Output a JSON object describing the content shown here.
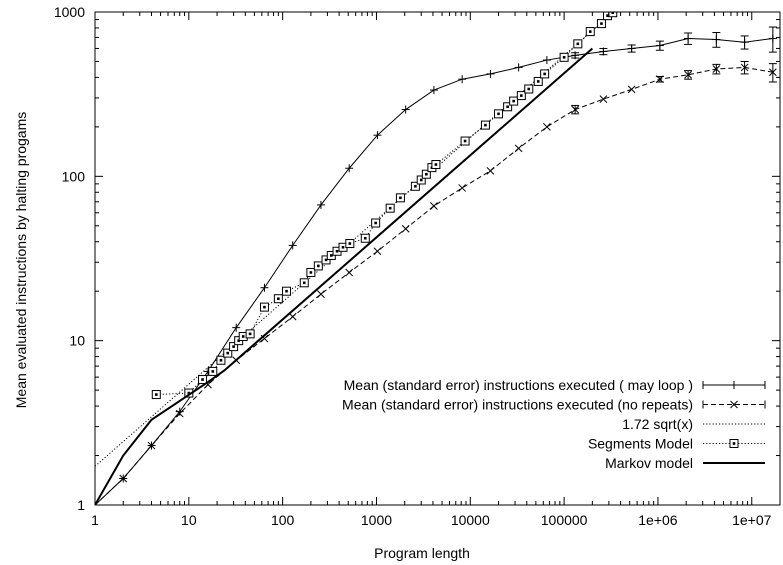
{
  "chart_data": {
    "type": "line",
    "xscale": "log",
    "yscale": "log",
    "xlim": [
      1,
      20000000
    ],
    "ylim": [
      1,
      1000
    ],
    "xlabel": "Program length",
    "ylabel": "Mean evaluated instructions by halting progams",
    "grid": false,
    "legend_position": "bottom-right",
    "x_ticks": [
      {
        "v": 1,
        "label": "1"
      },
      {
        "v": 10,
        "label": "10"
      },
      {
        "v": 100,
        "label": "100"
      },
      {
        "v": 1000,
        "label": "1000"
      },
      {
        "v": 10000,
        "label": "10000"
      },
      {
        "v": 100000,
        "label": "100000"
      },
      {
        "v": 1000000,
        "label": "1e+06"
      },
      {
        "v": 10000000,
        "label": "1e+07"
      }
    ],
    "y_ticks": [
      {
        "v": 1,
        "label": "1"
      },
      {
        "v": 10,
        "label": "10"
      },
      {
        "v": 100,
        "label": "100"
      },
      {
        "v": 1000,
        "label": "1000"
      }
    ],
    "series": [
      {
        "name": "Mean (standard error) instructions executed  ( may loop )",
        "style": "solid-thin",
        "marker": "plus",
        "points": [
          [
            1,
            1
          ],
          [
            2,
            1.45
          ],
          [
            4,
            2.3
          ],
          [
            8,
            3.7
          ],
          [
            16,
            6.5
          ],
          [
            32,
            12
          ],
          [
            64,
            21
          ],
          [
            128,
            38
          ],
          [
            256,
            67
          ],
          [
            512,
            112
          ],
          [
            1024,
            178
          ],
          [
            2048,
            255
          ],
          [
            4096,
            335
          ],
          [
            8192,
            390
          ],
          [
            16384,
            420
          ],
          [
            32768,
            460
          ],
          [
            65536,
            510
          ],
          [
            131072,
            545
          ],
          [
            262144,
            575
          ],
          [
            524288,
            600
          ],
          [
            1048576,
            625
          ],
          [
            2097152,
            690
          ],
          [
            4194304,
            680
          ],
          [
            8388608,
            655
          ],
          [
            16777216,
            690
          ]
        ],
        "errors": [
          0,
          0,
          0,
          0,
          0,
          0,
          0,
          0,
          0,
          0,
          0,
          0,
          0,
          0,
          0,
          0,
          0,
          20,
          25,
          30,
          40,
          55,
          70,
          60,
          120
        ]
      },
      {
        "name": "Mean (standard error) instructions executed (no repeats)",
        "style": "dashed",
        "marker": "x",
        "points": [
          [
            1,
            1
          ],
          [
            2,
            1.45
          ],
          [
            4,
            2.3
          ],
          [
            8,
            3.6
          ],
          [
            16,
            5.4
          ],
          [
            32,
            7.6
          ],
          [
            64,
            10.3
          ],
          [
            128,
            14
          ],
          [
            256,
            19.2
          ],
          [
            512,
            26
          ],
          [
            1024,
            35
          ],
          [
            2048,
            48
          ],
          [
            4096,
            66
          ],
          [
            8192,
            85
          ],
          [
            16384,
            108
          ],
          [
            32768,
            148
          ],
          [
            65536,
            200
          ],
          [
            131072,
            255
          ],
          [
            262144,
            295
          ],
          [
            524288,
            338
          ],
          [
            1048576,
            390
          ],
          [
            2097152,
            415
          ],
          [
            4194304,
            450
          ],
          [
            8388608,
            460
          ],
          [
            16777216,
            430
          ]
        ],
        "errors": [
          0,
          0,
          0,
          0,
          0,
          0,
          0,
          0,
          0,
          0,
          0,
          0,
          0,
          0,
          0,
          0,
          0,
          15,
          0,
          0,
          15,
          25,
          30,
          40,
          55
        ]
      },
      {
        "name": "1.72 sqrt(x)",
        "style": "dotted",
        "marker": "none",
        "coef": 1.72
      },
      {
        "name": "Segments Model",
        "style": "dotted",
        "marker": "square",
        "points": [
          [
            4.5,
            4.7
          ],
          [
            10,
            4.8
          ],
          [
            14,
            5.8
          ],
          [
            18,
            6.5
          ],
          [
            22,
            7.6
          ],
          [
            26,
            8.4
          ],
          [
            30,
            9.2
          ],
          [
            34,
            10
          ],
          [
            38,
            10.6
          ],
          [
            45,
            11
          ],
          [
            64,
            16
          ],
          [
            90,
            18
          ],
          [
            110,
            20
          ],
          [
            170,
            22.5
          ],
          [
            200,
            26
          ],
          [
            240,
            28.5
          ],
          [
            290,
            31
          ],
          [
            330,
            33
          ],
          [
            380,
            35
          ],
          [
            440,
            37
          ],
          [
            520,
            39
          ],
          [
            760,
            42
          ],
          [
            980,
            52
          ],
          [
            1400,
            64
          ],
          [
            1800,
            74
          ],
          [
            2600,
            87
          ],
          [
            3000,
            95
          ],
          [
            3400,
            103
          ],
          [
            3900,
            113
          ],
          [
            4300,
            118
          ],
          [
            8800,
            164
          ],
          [
            14500,
            205
          ],
          [
            20000,
            240
          ],
          [
            25000,
            265
          ],
          [
            29000,
            287
          ],
          [
            35000,
            310
          ],
          [
            42000,
            340
          ],
          [
            53000,
            378
          ],
          [
            62000,
            420
          ],
          [
            100000,
            530
          ],
          [
            140000,
            640
          ],
          [
            190000,
            760
          ],
          [
            250000,
            850
          ],
          [
            290000,
            950
          ],
          [
            330000,
            990
          ]
        ]
      },
      {
        "name": "Markov model",
        "style": "solid-thick",
        "marker": "none",
        "points": [
          [
            1,
            1
          ],
          [
            2,
            2
          ],
          [
            4,
            3.3
          ],
          [
            8,
            4.3
          ],
          [
            16,
            5.6
          ],
          [
            24,
            6.6
          ],
          [
            200000,
            600
          ]
        ]
      }
    ]
  }
}
